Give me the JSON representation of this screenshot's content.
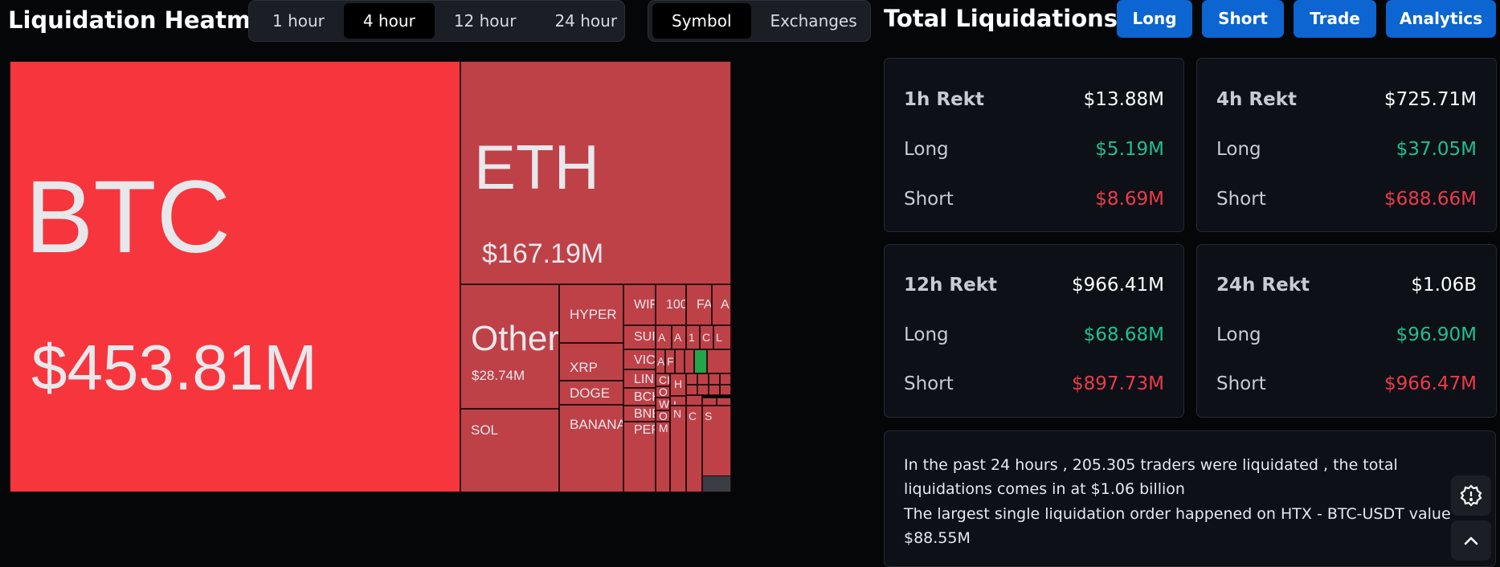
{
  "heatmap": {
    "title": "Liquidation Heatmap",
    "time_tabs": [
      {
        "label": "1 hour",
        "active": false
      },
      {
        "label": "4 hour",
        "active": true
      },
      {
        "label": "12 hour",
        "active": false
      },
      {
        "label": "24 hour",
        "active": false
      }
    ],
    "mode_tabs": [
      {
        "label": "Symbol",
        "active": true
      },
      {
        "label": "Exchanges",
        "active": false
      }
    ],
    "colors": {
      "btc": "#f7353d",
      "tile": "#bf4148",
      "tile_green": "#23a54a",
      "tile_dark": "#3a3d44",
      "border": "#2a0e10"
    },
    "tiles": [
      {
        "symbol": "BTC",
        "value": "$453.81M"
      },
      {
        "symbol": "ETH",
        "value": "$167.19M"
      },
      {
        "symbol": "Others",
        "value": "$28.74M"
      },
      {
        "symbol": "HYPER"
      },
      {
        "symbol": "XRP"
      },
      {
        "symbol": "DOGE"
      },
      {
        "symbol": "SOL"
      },
      {
        "symbol": "BANANAS"
      },
      {
        "symbol": "WIF"
      },
      {
        "symbol": "100"
      },
      {
        "symbol": "FA"
      },
      {
        "symbol": "A"
      },
      {
        "symbol": "SUI"
      },
      {
        "symbol": "VIC"
      },
      {
        "symbol": "LINK"
      },
      {
        "symbol": "BCH"
      },
      {
        "symbol": "BNB"
      },
      {
        "symbol": "PEP"
      },
      {
        "symbol": "A"
      },
      {
        "symbol": "A"
      },
      {
        "symbol": "1"
      },
      {
        "symbol": "C"
      },
      {
        "symbol": "L"
      },
      {
        "symbol": "A"
      },
      {
        "symbol": "F"
      },
      {
        "symbol": "CI"
      },
      {
        "symbol": "O"
      },
      {
        "symbol": "W"
      },
      {
        "symbol": "O"
      },
      {
        "symbol": "M"
      },
      {
        "symbol": "H"
      },
      {
        "symbol": "M"
      },
      {
        "symbol": "I"
      },
      {
        "symbol": "N"
      },
      {
        "symbol": "C"
      },
      {
        "symbol": "S"
      }
    ]
  },
  "totals": {
    "title": "Total Liquidations",
    "buttons": [
      "Long",
      "Short",
      "Trade",
      "Analytics"
    ],
    "cards": [
      {
        "label": "1h Rekt",
        "total": "$13.88M",
        "long_label": "Long",
        "long": "$5.19M",
        "short_label": "Short",
        "short": "$8.69M"
      },
      {
        "label": "4h Rekt",
        "total": "$725.71M",
        "long_label": "Long",
        "long": "$37.05M",
        "short_label": "Short",
        "short": "$688.66M"
      },
      {
        "label": "12h Rekt",
        "total": "$966.41M",
        "long_label": "Long",
        "long": "$68.68M",
        "short_label": "Short",
        "short": "$897.73M"
      },
      {
        "label": "24h Rekt",
        "total": "$1.06B",
        "long_label": "Long",
        "long": "$96.90M",
        "short_label": "Short",
        "short": "$966.47M"
      }
    ],
    "summary_line1": "In the past 24 hours , 205.305 traders were liquidated , the total liquidations comes in at $1.06 billion",
    "summary_line2": "The largest single liquidation order happened on HTX - BTC-USDT value $88.55M"
  },
  "fab_icons": [
    "settings-timer-icon",
    "chevron-up-icon"
  ]
}
